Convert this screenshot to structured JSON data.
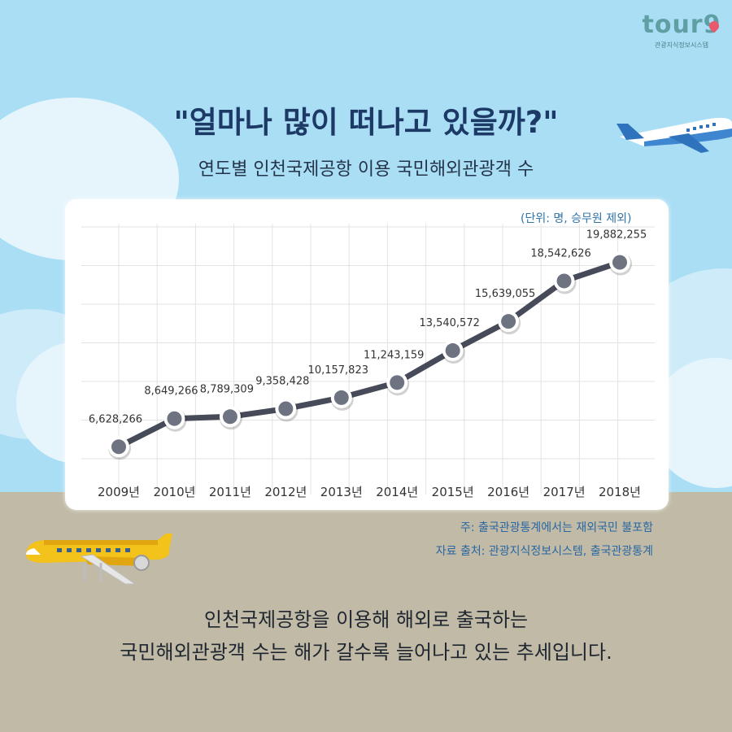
{
  "logo": {
    "mark": "tour9",
    "caption": "관광지식정보시스템"
  },
  "headline": "\"얼마나 많이 떠나고 있을까?\"",
  "subtitle": "연도별 인천국제공항 이용 국민해외관광객 수",
  "unit_note": "(단위: 명, 승무원 제외)",
  "notes": {
    "footnote": "주: 출국관광통계에서는 재외국민 불포함",
    "source": "자료 출처: 관광지식정보시스템, 출국관광통계"
  },
  "summary": {
    "line1": "인천국제공항을 이용해 해외로 출국하는",
    "line2": "국민해외관광객 수는 해가 갈수록 늘어나고 있는 추세입니다."
  },
  "colors": {
    "line": "#474a58",
    "marker_fill": "#6d7381",
    "marker_ring": "#ffffff",
    "grid": "#e3e3e3",
    "headline": "#1d3a67",
    "sky": "#a9def5",
    "ground": "#c0baa6"
  },
  "chart_data": {
    "type": "line",
    "title": "연도별 인천국제공항 이용 국민해외관광객 수",
    "categories": [
      "2009년",
      "2010년",
      "2011년",
      "2012년",
      "2013년",
      "2014년",
      "2015년",
      "2016년",
      "2017년",
      "2018년"
    ],
    "values": [
      6628266,
      8649266,
      8789309,
      9358428,
      10157823,
      11243159,
      13540572,
      15639055,
      18542626,
      19882255
    ],
    "labels": [
      "6,628,266",
      "8,649,266",
      "8,789,309",
      "9,358,428",
      "10,157,823",
      "11,243,159",
      "13,540,572",
      "15,639,055",
      "18,542,626",
      "19,882,255"
    ],
    "ylabel": "",
    "xlabel": "",
    "grid": true,
    "legend": "none"
  }
}
